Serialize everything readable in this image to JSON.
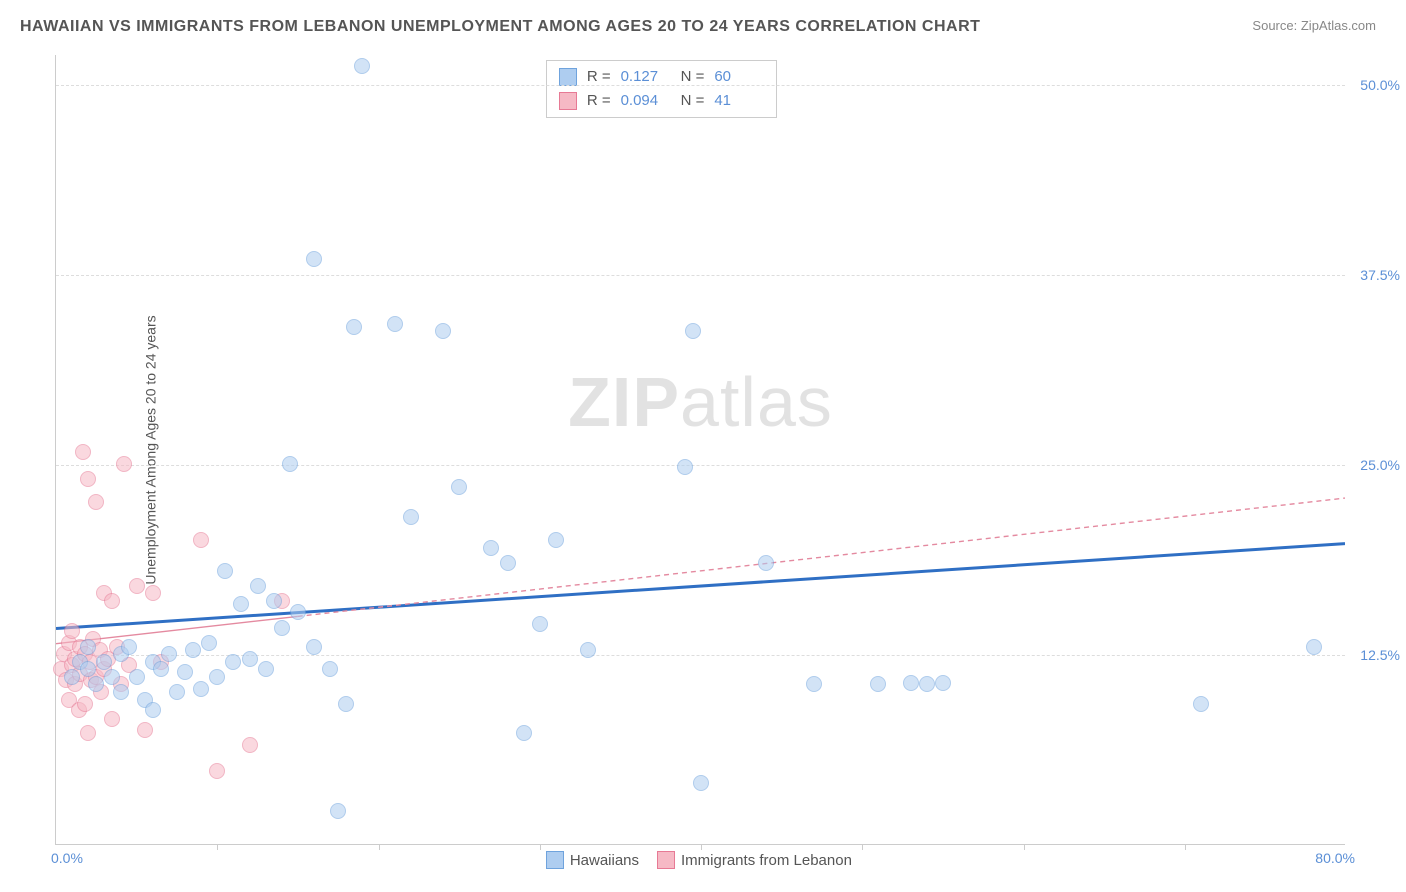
{
  "title": "HAWAIIAN VS IMMIGRANTS FROM LEBANON UNEMPLOYMENT AMONG AGES 20 TO 24 YEARS CORRELATION CHART",
  "source_label": "Source:",
  "source_value": "ZipAtlas.com",
  "watermark_a": "ZIP",
  "watermark_b": "atlas",
  "y_axis_title": "Unemployment Among Ages 20 to 24 years",
  "chart": {
    "type": "scatter",
    "xlim": [
      0,
      80
    ],
    "ylim": [
      0,
      52
    ],
    "x_min_label": "0.0%",
    "x_max_label": "80.0%",
    "x_ticks": [
      10,
      20,
      30,
      40,
      50,
      60,
      70
    ],
    "y_gridlines": [
      12.5,
      25.0,
      37.5,
      50.0
    ],
    "y_tick_labels": [
      "12.5%",
      "25.0%",
      "37.5%",
      "50.0%"
    ],
    "background_color": "#ffffff",
    "grid_color": "#dddddd",
    "series": [
      {
        "name": "Hawaiians",
        "fill": "#aecdf0",
        "stroke": "#6fa3dd",
        "fill_opacity": 0.55,
        "r_label": "R =",
        "r_value": "0.127",
        "n_label": "N =",
        "n_value": "60",
        "trend": {
          "x1": 0,
          "y1": 14.2,
          "x2": 80,
          "y2": 19.8,
          "color": "#2f6fc4",
          "width": 3,
          "dash": "none"
        },
        "points": [
          [
            1,
            11
          ],
          [
            1.5,
            12
          ],
          [
            2,
            11.5
          ],
          [
            2,
            13
          ],
          [
            2.5,
            10.5
          ],
          [
            3,
            12
          ],
          [
            3.5,
            11
          ],
          [
            4,
            12.5
          ],
          [
            4,
            10
          ],
          [
            4.5,
            13
          ],
          [
            5,
            11
          ],
          [
            5.5,
            9.5
          ],
          [
            6,
            12
          ],
          [
            6,
            8.8
          ],
          [
            6.5,
            11.5
          ],
          [
            7,
            12.5
          ],
          [
            7.5,
            10
          ],
          [
            8,
            11.3
          ],
          [
            8.5,
            12.8
          ],
          [
            9,
            10.2
          ],
          [
            9.5,
            13.2
          ],
          [
            10,
            11
          ],
          [
            10.5,
            18
          ],
          [
            11,
            12
          ],
          [
            11.5,
            15.8
          ],
          [
            12,
            12.2
          ],
          [
            12.5,
            17
          ],
          [
            13,
            11.5
          ],
          [
            13.5,
            16
          ],
          [
            14,
            14.2
          ],
          [
            14.5,
            25
          ],
          [
            15,
            15.3
          ],
          [
            16,
            13
          ],
          [
            16,
            38.5
          ],
          [
            17,
            11.5
          ],
          [
            17.5,
            2.2
          ],
          [
            18,
            9.2
          ],
          [
            18.5,
            34
          ],
          [
            19,
            51.2
          ],
          [
            21,
            34.2
          ],
          [
            22,
            21.5
          ],
          [
            24,
            33.8
          ],
          [
            25,
            23.5
          ],
          [
            27,
            19.5
          ],
          [
            28,
            18.5
          ],
          [
            29,
            7.3
          ],
          [
            30,
            14.5
          ],
          [
            31,
            20
          ],
          [
            33,
            12.8
          ],
          [
            39,
            24.8
          ],
          [
            39.5,
            33.8
          ],
          [
            40,
            4
          ],
          [
            44,
            18.5
          ],
          [
            47,
            10.5
          ],
          [
            51,
            10.5
          ],
          [
            53,
            10.6
          ],
          [
            54,
            10.5
          ],
          [
            55,
            10.6
          ],
          [
            71,
            9.2
          ],
          [
            78,
            13
          ]
        ]
      },
      {
        "name": "Immigrants from Lebanon",
        "fill": "#f6b9c5",
        "stroke": "#e77a95",
        "fill_opacity": 0.55,
        "r_label": "R =",
        "r_value": "0.094",
        "n_label": "N =",
        "n_value": "41",
        "trend": {
          "x1": 0,
          "y1": 13.2,
          "x2": 80,
          "y2": 22.8,
          "color": "#e48aa0",
          "width": 1.4,
          "dash": "5,4",
          "solid_until": 15
        },
        "points": [
          [
            0.3,
            11.5
          ],
          [
            0.5,
            12.5
          ],
          [
            0.6,
            10.8
          ],
          [
            0.8,
            13.2
          ],
          [
            0.8,
            9.5
          ],
          [
            1,
            11.8
          ],
          [
            1,
            14
          ],
          [
            1.2,
            12.2
          ],
          [
            1.2,
            10.5
          ],
          [
            1.4,
            8.8
          ],
          [
            1.5,
            13
          ],
          [
            1.5,
            11.2
          ],
          [
            1.7,
            25.8
          ],
          [
            1.8,
            12.5
          ],
          [
            1.8,
            9.2
          ],
          [
            2,
            7.3
          ],
          [
            2,
            24
          ],
          [
            2.1,
            12
          ],
          [
            2.2,
            10.8
          ],
          [
            2.3,
            13.5
          ],
          [
            2.5,
            11
          ],
          [
            2.5,
            22.5
          ],
          [
            2.7,
            12.8
          ],
          [
            2.8,
            10
          ],
          [
            3,
            16.5
          ],
          [
            3,
            11.5
          ],
          [
            3.2,
            12.2
          ],
          [
            3.5,
            8.2
          ],
          [
            3.5,
            16
          ],
          [
            3.8,
            13
          ],
          [
            4,
            10.5
          ],
          [
            4.2,
            25
          ],
          [
            4.5,
            11.8
          ],
          [
            5,
            17
          ],
          [
            5.5,
            7.5
          ],
          [
            6,
            16.5
          ],
          [
            6.5,
            12
          ],
          [
            9,
            20
          ],
          [
            10,
            4.8
          ],
          [
            12,
            6.5
          ],
          [
            14,
            16
          ]
        ]
      }
    ]
  }
}
